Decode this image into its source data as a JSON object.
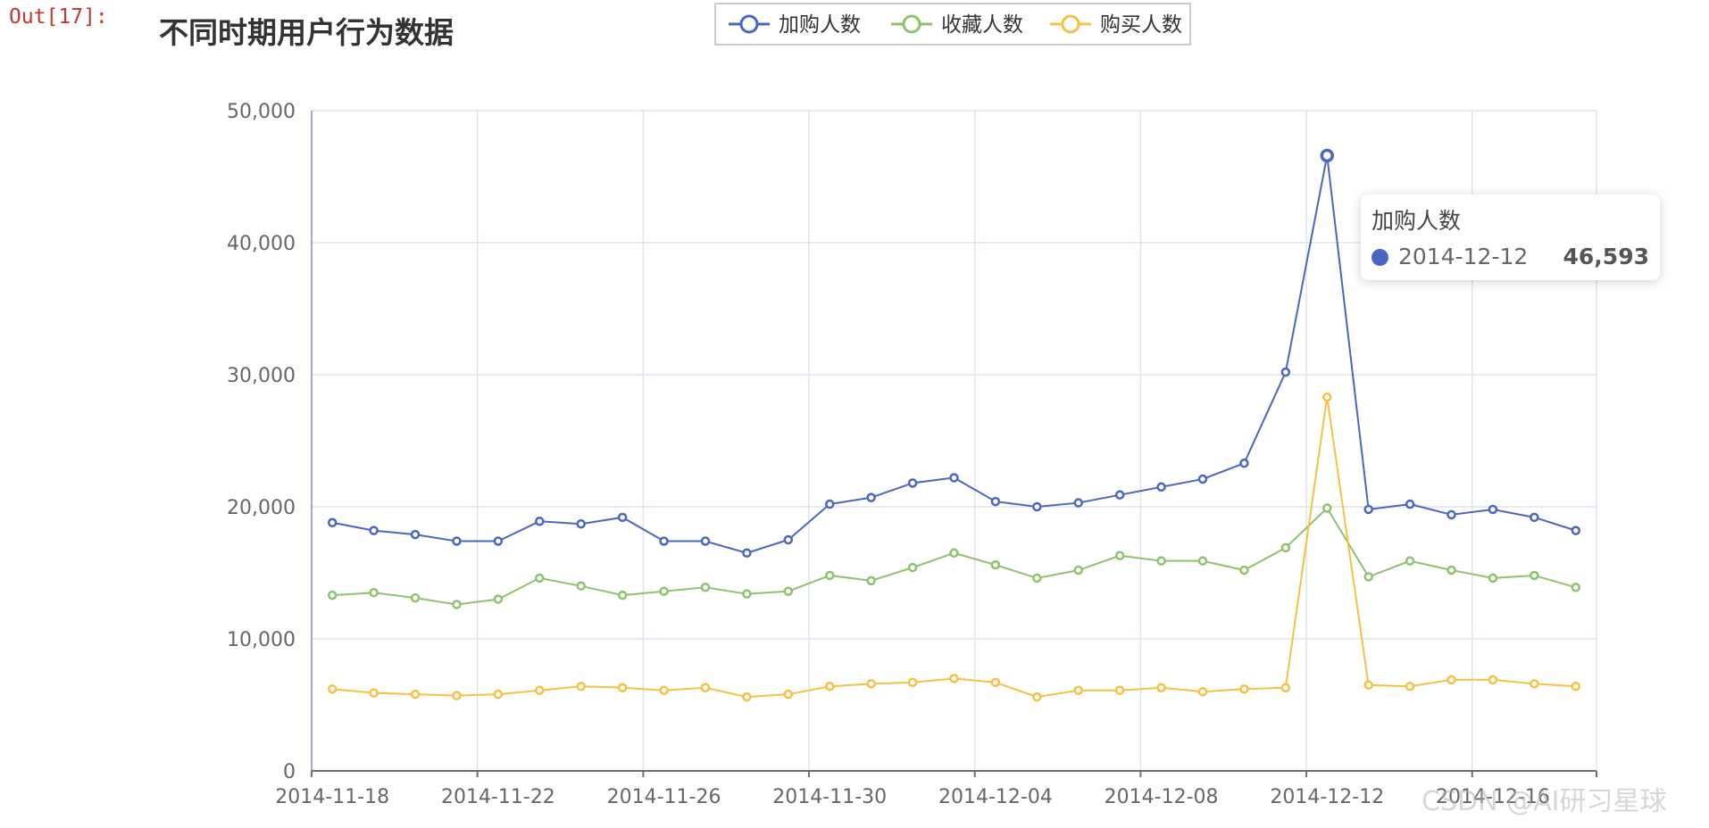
{
  "cell_prompt": "Out[17]:",
  "watermark": "CSDN @AI研习星球",
  "chart_data": {
    "type": "line",
    "title": "不同时期用户行为数据",
    "xlabel": "",
    "ylabel": "",
    "ylim": [
      0,
      50000
    ],
    "y_ticks": [
      "0",
      "10,000",
      "20,000",
      "30,000",
      "40,000",
      "50,000"
    ],
    "x_tick_labels": [
      "2014-11-18",
      "2014-11-22",
      "2014-11-26",
      "2014-11-30",
      "2014-12-04",
      "2014-12-08",
      "2014-12-12",
      "2014-12-16"
    ],
    "grid": true,
    "legend_position": "top-center",
    "x": [
      "2014-11-18",
      "2014-11-19",
      "2014-11-20",
      "2014-11-21",
      "2014-11-22",
      "2014-11-23",
      "2014-11-24",
      "2014-11-25",
      "2014-11-26",
      "2014-11-27",
      "2014-11-28",
      "2014-11-29",
      "2014-11-30",
      "2014-12-01",
      "2014-12-02",
      "2014-12-03",
      "2014-12-04",
      "2014-12-05",
      "2014-12-06",
      "2014-12-07",
      "2014-12-08",
      "2014-12-09",
      "2014-12-10",
      "2014-12-11",
      "2014-12-12",
      "2014-12-13",
      "2014-12-14",
      "2014-12-15",
      "2014-12-16",
      "2014-12-17",
      "2014-12-18"
    ],
    "series": [
      {
        "name": "加购人数",
        "color": "#4a65c4",
        "values": [
          18800,
          18200,
          17900,
          17400,
          17400,
          18900,
          18700,
          19200,
          17400,
          17400,
          16500,
          17500,
          20200,
          20700,
          21800,
          22200,
          20400,
          20000,
          20300,
          20900,
          21500,
          22100,
          23300,
          30200,
          46593,
          19800,
          20200,
          19400,
          19800,
          19200,
          18200
        ]
      },
      {
        "name": "收藏人数",
        "color": "#8cc36c",
        "values": [
          13300,
          13500,
          13100,
          12600,
          13000,
          14600,
          14000,
          13300,
          13600,
          13900,
          13400,
          13600,
          14800,
          14400,
          15400,
          16500,
          15600,
          14600,
          15200,
          16300,
          15900,
          15900,
          15200,
          16900,
          19900,
          14700,
          15900,
          15200,
          14600,
          14800,
          13900
        ]
      },
      {
        "name": "购买人数",
        "color": "#f7c043",
        "values": [
          6200,
          5900,
          5800,
          5700,
          5800,
          6100,
          6400,
          6300,
          6100,
          6300,
          5600,
          5800,
          6400,
          6600,
          6700,
          7000,
          6700,
          5600,
          6100,
          6100,
          6300,
          6000,
          6200,
          6300,
          28300,
          6500,
          6400,
          6900,
          6900,
          6600,
          6400
        ]
      }
    ],
    "tooltip": {
      "series_name": "加购人数",
      "date": "2014-12-12",
      "value_text": "46,593"
    }
  }
}
